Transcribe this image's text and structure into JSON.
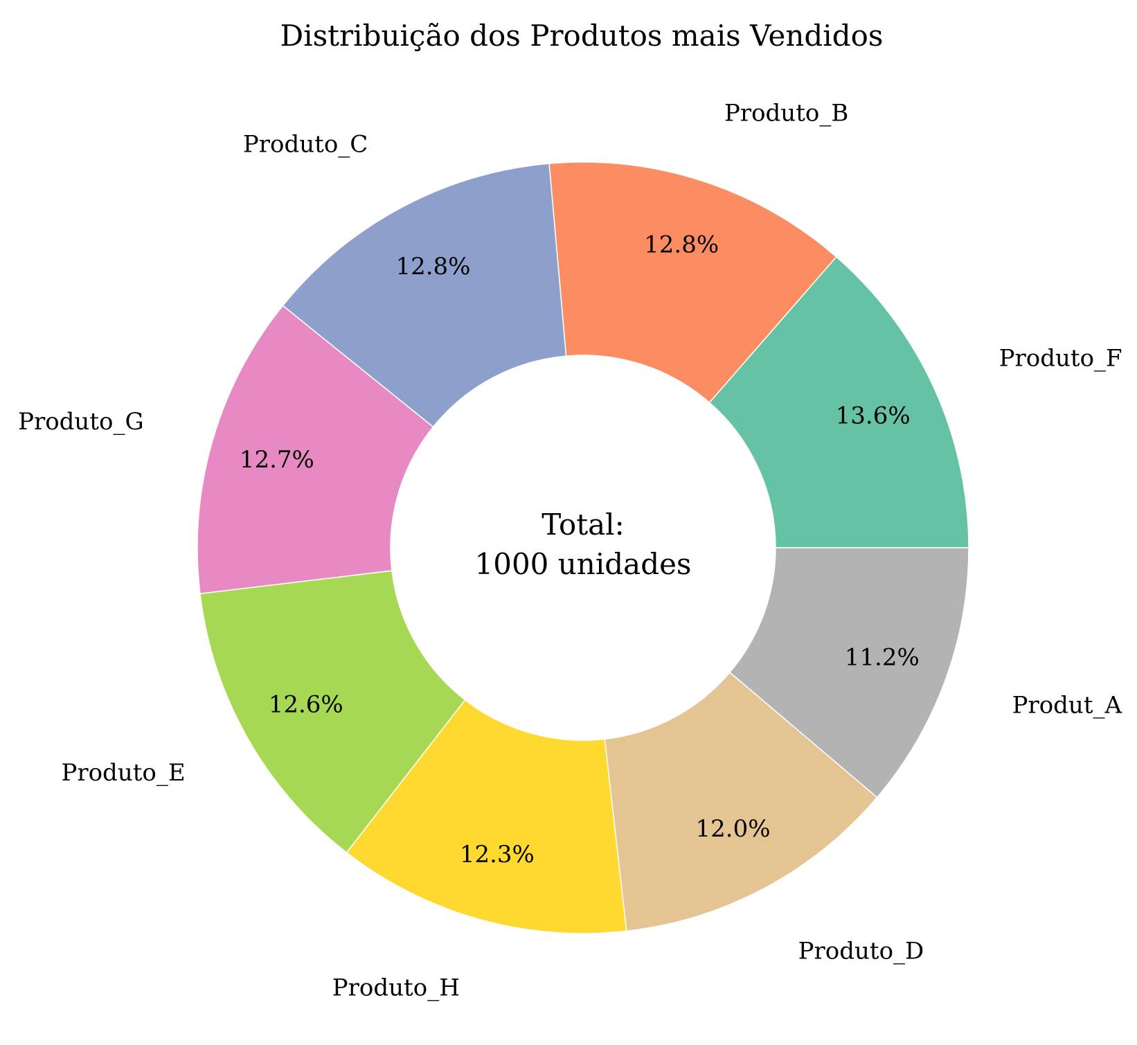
{
  "chart_data": {
    "type": "pie",
    "subtype": "donut",
    "title": "Distribuição dos Produtos mais Vendidos",
    "center_text": [
      "Total:",
      "1000 unidades"
    ],
    "categories": [
      "Produto_F",
      "Produto_B",
      "Produto_C",
      "Produto_G",
      "Produto_E",
      "Produto_H",
      "Produto_D",
      "Produt_A"
    ],
    "values": [
      136,
      128,
      128,
      127,
      126,
      123,
      120,
      112
    ],
    "percent_labels": [
      "13.6%",
      "12.8%",
      "12.8%",
      "12.7%",
      "12.6%",
      "12.3%",
      "12.0%",
      "11.2%"
    ],
    "colors": [
      "#66c2a5",
      "#fc8d62",
      "#8da0cb",
      "#e78ac3",
      "#a6d854",
      "#ffd92f",
      "#e5c494",
      "#b3b3b3"
    ],
    "start_angle_deg": 0,
    "direction": "counterclockwise",
    "legend": "none"
  }
}
